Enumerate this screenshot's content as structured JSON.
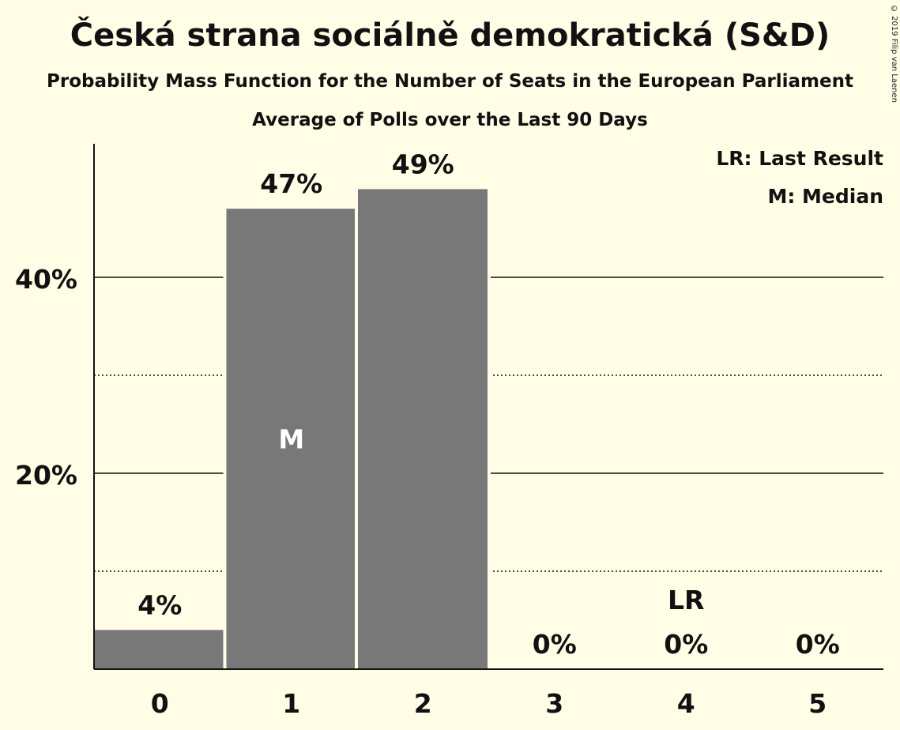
{
  "header": {
    "title": "Česká strana sociálně demokratická (S&D)",
    "subtitle": "Probability Mass Function for the Number of Seats in the European Parliament",
    "subtitle2": "Average of Polls over the Last 90 Days",
    "copyright": "© 2019 Filip van Laenen"
  },
  "legend": {
    "last_result": "LR: Last Result",
    "median": "M: Median"
  },
  "colors": {
    "background": "#fffde6",
    "bar": "#787878",
    "text": "#111111"
  },
  "chart_data": {
    "type": "bar",
    "categories": [
      "0",
      "1",
      "2",
      "3",
      "4",
      "5"
    ],
    "values": [
      4,
      47,
      49,
      0,
      0,
      0
    ],
    "value_labels": [
      "4%",
      "47%",
      "49%",
      "0%",
      "0%",
      "0%"
    ],
    "ytick_labels": [
      "20%",
      "40%"
    ],
    "ytick_values": [
      20,
      40
    ],
    "minor_gridlines": [
      10,
      30
    ],
    "ylim": [
      0,
      52
    ],
    "grid": true,
    "median_index": 1,
    "median_marker": "M",
    "last_result_index": 4,
    "last_result_marker": "LR"
  }
}
